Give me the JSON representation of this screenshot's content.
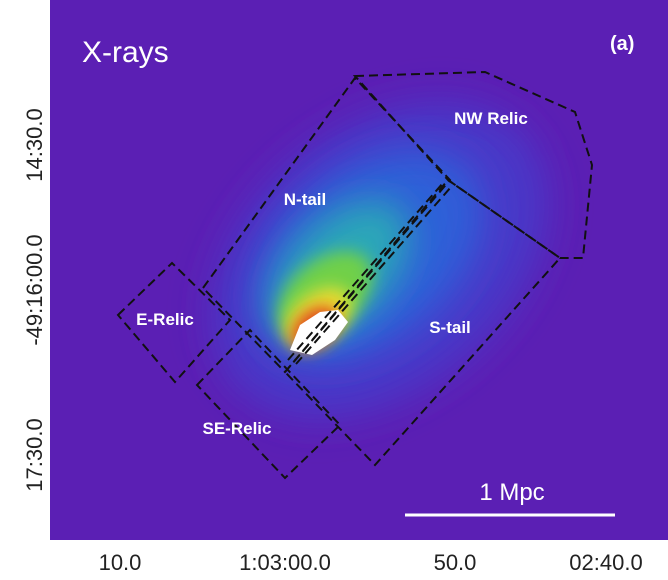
{
  "panel": {
    "title": "X-rays",
    "tag": "(a)"
  },
  "regions": [
    {
      "label": "NW Relic"
    },
    {
      "label": "N-tail"
    },
    {
      "label": "E-Relic"
    },
    {
      "label": "S-tail"
    },
    {
      "label": "SE-Relic"
    }
  ],
  "scale_bar": {
    "label": "1 Mpc"
  },
  "axes": {
    "y_ticks": [
      "14:30.0",
      "-49:16:00.0",
      "17:30.0"
    ],
    "x_ticks": [
      "10.0",
      "1:03:00.0",
      "50.0",
      "02:40.0"
    ]
  }
}
